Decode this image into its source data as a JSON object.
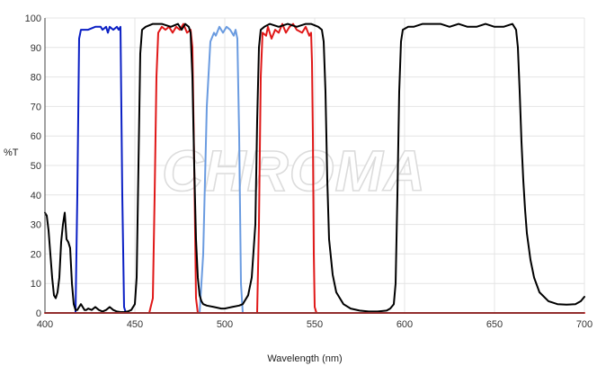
{
  "watermark": {
    "text": "CHROMA"
  },
  "chart_data": {
    "type": "line",
    "title": "",
    "xlabel": "Wavelength (nm)",
    "ylabel": "%T",
    "xlim": [
      400,
      700
    ],
    "ylim": [
      0,
      100
    ],
    "xticks": [
      400,
      450,
      500,
      550,
      600,
      650,
      700
    ],
    "yticks": [
      0,
      10,
      20,
      30,
      40,
      50,
      60,
      70,
      80,
      90,
      100
    ],
    "grid": true,
    "legend": "none",
    "series": [
      {
        "color": "#0a1fc4",
        "points": [
          [
            417,
            0
          ],
          [
            418,
            40
          ],
          [
            419,
            93
          ],
          [
            420,
            96
          ],
          [
            424,
            96
          ],
          [
            428,
            97
          ],
          [
            431,
            97
          ],
          [
            432,
            96
          ],
          [
            434,
            97
          ],
          [
            435,
            95
          ],
          [
            436,
            97
          ],
          [
            438,
            96
          ],
          [
            440,
            97
          ],
          [
            441,
            96
          ],
          [
            442,
            97
          ],
          [
            443,
            40
          ],
          [
            444,
            2
          ],
          [
            445,
            0
          ]
        ]
      },
      {
        "color": "#e01818",
        "points": [
          [
            458,
            0
          ],
          [
            460,
            5
          ],
          [
            461,
            40
          ],
          [
            462,
            80
          ],
          [
            463,
            95
          ],
          [
            465,
            97
          ],
          [
            467,
            96
          ],
          [
            469,
            97
          ],
          [
            471,
            95
          ],
          [
            473,
            97
          ],
          [
            475,
            96
          ],
          [
            477,
            98
          ],
          [
            479,
            95
          ],
          [
            481,
            96
          ],
          [
            482,
            90
          ],
          [
            483,
            50
          ],
          [
            484,
            5
          ],
          [
            485,
            0
          ]
        ]
      },
      {
        "color": "#6a9be0",
        "points": [
          [
            486,
            0
          ],
          [
            488,
            20
          ],
          [
            490,
            70
          ],
          [
            492,
            92
          ],
          [
            494,
            95
          ],
          [
            495,
            94
          ],
          [
            497,
            97
          ],
          [
            499,
            95
          ],
          [
            501,
            97
          ],
          [
            503,
            96
          ],
          [
            505,
            94
          ],
          [
            506,
            96
          ],
          [
            507,
            93
          ],
          [
            508,
            60
          ],
          [
            509,
            10
          ],
          [
            510,
            0
          ]
        ]
      },
      {
        "color": "#e01818",
        "points": [
          [
            518,
            0
          ],
          [
            519,
            30
          ],
          [
            520,
            80
          ],
          [
            521,
            95
          ],
          [
            523,
            94
          ],
          [
            524,
            97
          ],
          [
            526,
            93
          ],
          [
            528,
            96
          ],
          [
            530,
            95
          ],
          [
            532,
            98
          ],
          [
            534,
            95
          ],
          [
            536,
            97
          ],
          [
            538,
            98
          ],
          [
            540,
            96
          ],
          [
            543,
            95
          ],
          [
            545,
            97
          ],
          [
            547,
            94
          ],
          [
            548,
            95
          ],
          [
            548.5,
            85
          ],
          [
            549,
            60
          ],
          [
            549.5,
            20
          ],
          [
            550,
            2
          ],
          [
            551,
            0
          ]
        ]
      },
      {
        "color": "#000000",
        "points": [
          [
            400,
            34
          ],
          [
            401,
            33
          ],
          [
            402,
            28
          ],
          [
            403,
            20
          ],
          [
            404,
            12
          ],
          [
            405,
            6
          ],
          [
            406,
            5
          ],
          [
            407,
            7
          ],
          [
            408,
            12
          ],
          [
            409,
            24
          ],
          [
            410,
            30
          ],
          [
            411,
            34
          ],
          [
            412,
            25
          ],
          [
            413,
            24
          ],
          [
            414,
            22
          ],
          [
            415,
            10
          ],
          [
            416,
            3
          ],
          [
            417,
            1
          ],
          [
            418,
            1
          ],
          [
            419,
            2
          ],
          [
            420,
            3
          ],
          [
            421,
            2
          ],
          [
            422,
            1
          ],
          [
            423,
            1
          ],
          [
            424,
            1.5
          ],
          [
            426,
            1
          ],
          [
            428,
            2
          ],
          [
            430,
            1
          ],
          [
            432,
            0.5
          ],
          [
            434,
            1
          ],
          [
            436,
            2
          ],
          [
            438,
            1
          ],
          [
            440,
            0.5
          ],
          [
            442,
            0.3
          ],
          [
            444,
            0.3
          ],
          [
            446,
            0.5
          ],
          [
            448,
            1
          ],
          [
            450,
            3
          ],
          [
            451,
            12
          ],
          [
            452,
            50
          ],
          [
            453,
            88
          ],
          [
            454,
            96
          ],
          [
            456,
            97
          ],
          [
            460,
            98
          ],
          [
            465,
            98
          ],
          [
            470,
            97
          ],
          [
            474,
            98
          ],
          [
            476,
            96
          ],
          [
            478,
            98
          ],
          [
            480,
            97
          ],
          [
            481,
            95
          ],
          [
            482,
            80
          ],
          [
            483,
            50
          ],
          [
            484,
            25
          ],
          [
            485,
            12
          ],
          [
            486,
            6
          ],
          [
            487,
            4
          ],
          [
            488,
            3
          ],
          [
            490,
            2.5
          ],
          [
            494,
            2
          ],
          [
            498,
            1.5
          ],
          [
            500,
            1.5
          ],
          [
            504,
            2
          ],
          [
            508,
            2.5
          ],
          [
            510,
            3
          ],
          [
            511,
            4
          ],
          [
            513,
            6
          ],
          [
            515,
            12
          ],
          [
            517,
            30
          ],
          [
            518,
            65
          ],
          [
            519,
            90
          ],
          [
            520,
            96
          ],
          [
            522,
            97
          ],
          [
            525,
            98
          ],
          [
            530,
            97
          ],
          [
            535,
            98
          ],
          [
            540,
            97
          ],
          [
            545,
            98
          ],
          [
            548,
            98
          ],
          [
            552,
            97
          ],
          [
            554,
            96
          ],
          [
            555,
            92
          ],
          [
            556,
            75
          ],
          [
            557,
            45
          ],
          [
            558,
            25
          ],
          [
            560,
            13
          ],
          [
            562,
            7
          ],
          [
            566,
            3
          ],
          [
            570,
            1.5
          ],
          [
            575,
            0.8
          ],
          [
            580,
            0.5
          ],
          [
            585,
            0.5
          ],
          [
            590,
            0.8
          ],
          [
            592,
            1.5
          ],
          [
            594,
            3
          ],
          [
            595,
            10
          ],
          [
            596,
            40
          ],
          [
            597,
            75
          ],
          [
            598,
            92
          ],
          [
            599,
            96
          ],
          [
            602,
            97
          ],
          [
            605,
            97
          ],
          [
            610,
            98
          ],
          [
            615,
            98
          ],
          [
            620,
            98
          ],
          [
            625,
            97
          ],
          [
            630,
            98
          ],
          [
            635,
            97
          ],
          [
            640,
            97
          ],
          [
            645,
            98
          ],
          [
            650,
            97
          ],
          [
            655,
            97
          ],
          [
            660,
            98
          ],
          [
            662,
            96
          ],
          [
            663,
            90
          ],
          [
            664,
            75
          ],
          [
            665,
            58
          ],
          [
            666,
            45
          ],
          [
            667,
            35
          ],
          [
            668,
            27
          ],
          [
            670,
            18
          ],
          [
            672,
            12
          ],
          [
            675,
            7
          ],
          [
            680,
            4
          ],
          [
            685,
            3
          ],
          [
            690,
            2.8
          ],
          [
            695,
            3
          ],
          [
            698,
            4
          ],
          [
            700,
            5.5
          ]
        ]
      },
      {
        "color": "#e01818",
        "points": [
          [
            400,
            0
          ],
          [
            700,
            0
          ]
        ]
      }
    ]
  }
}
